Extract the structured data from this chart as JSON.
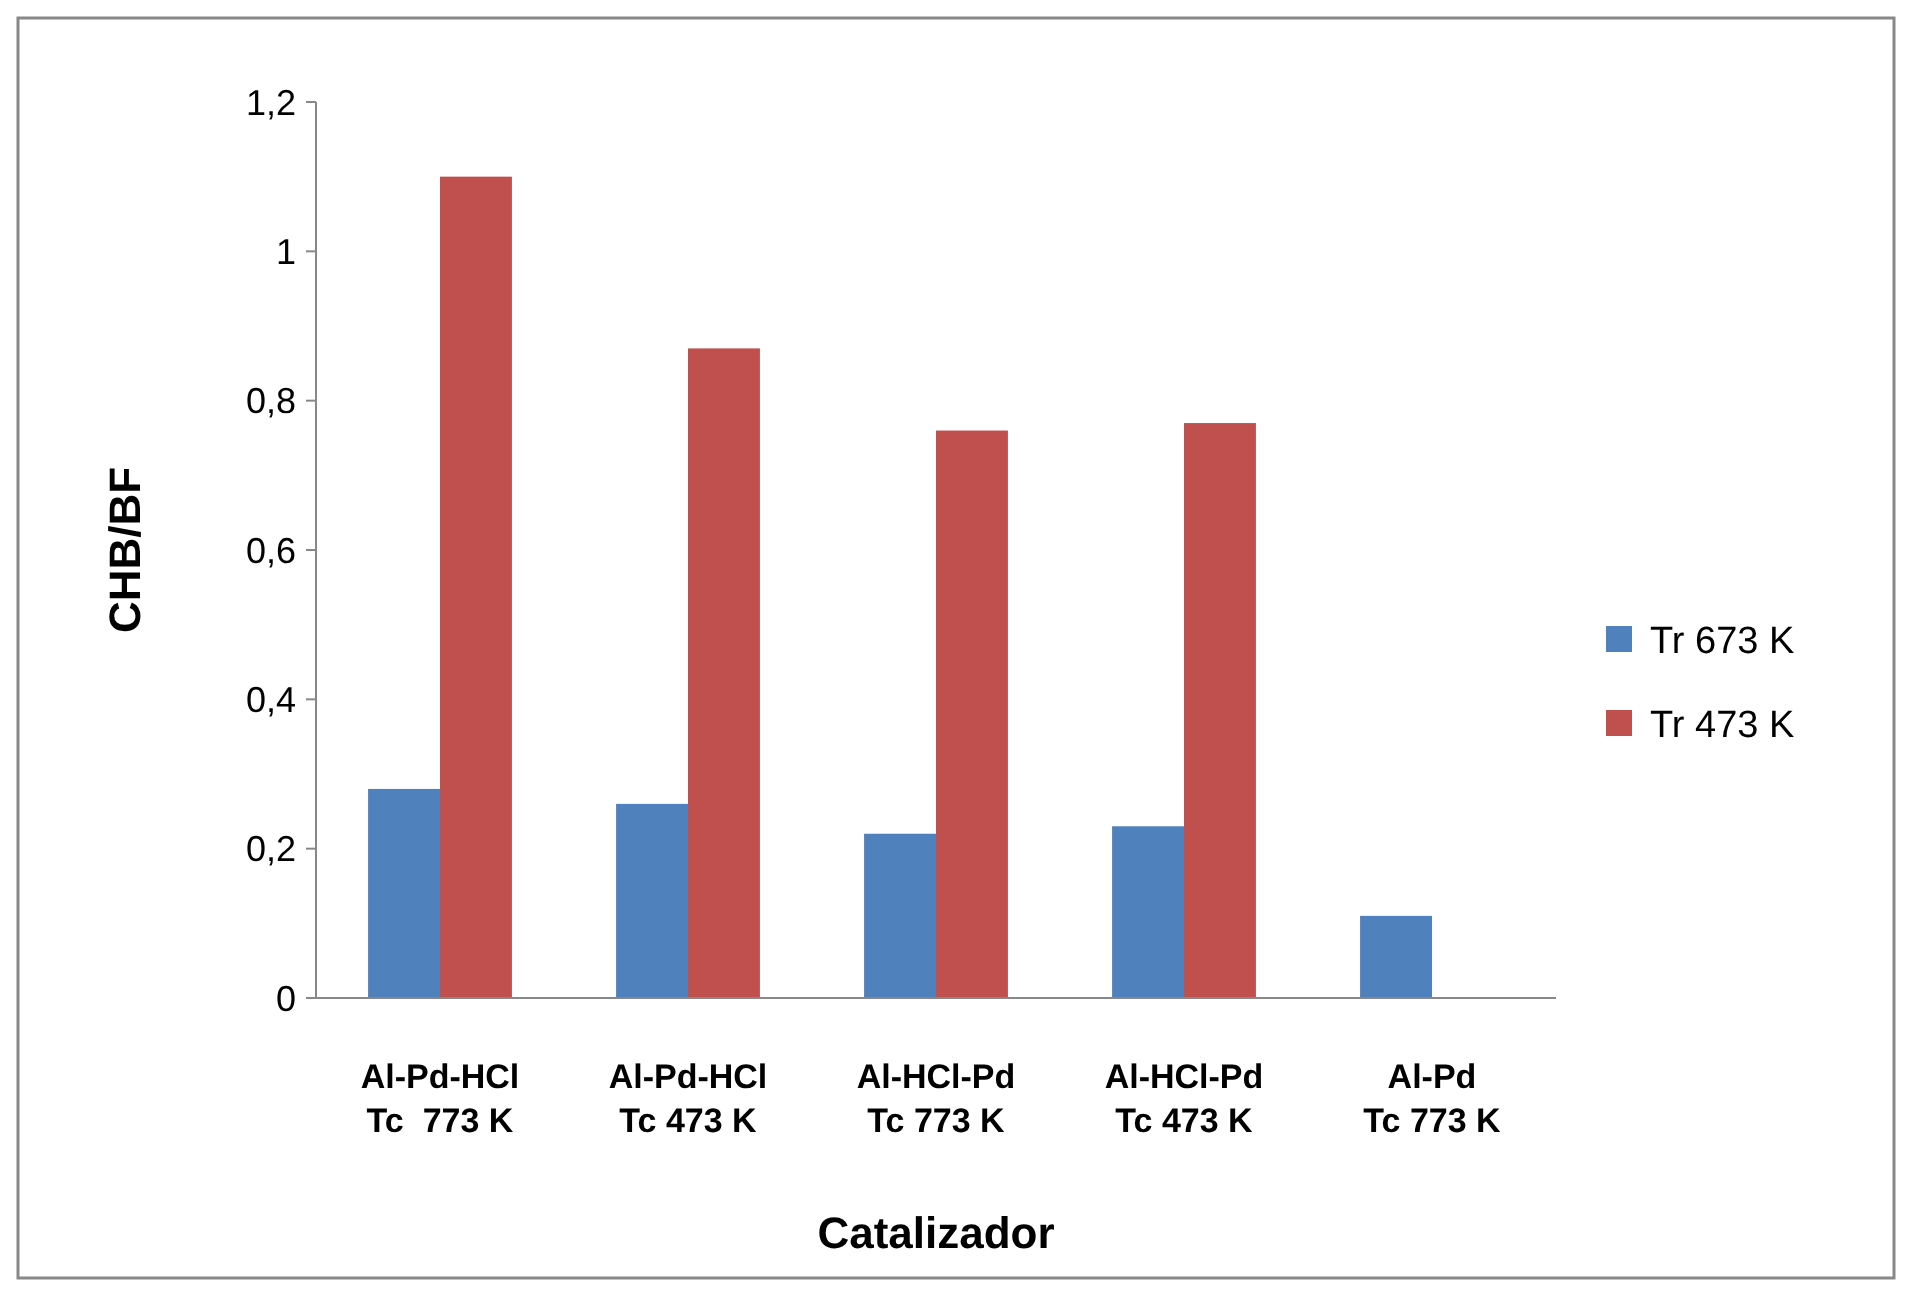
{
  "chart_data": {
    "type": "bar",
    "xlabel": "Catalizador",
    "ylabel": "CHB/BF",
    "categories": [
      "Al-Pd-HCl\nTc  773 K",
      "Al-Pd-HCl\nTc 473 K",
      "Al-HCl-Pd\nTc 773 K",
      "Al-HCl-Pd\nTc 473 K",
      "Al-Pd\nTc 773 K"
    ],
    "series": [
      {
        "name": "Tr 673 K",
        "color": "#4f81bd",
        "values": [
          0.28,
          0.26,
          0.22,
          0.23,
          0.11
        ]
      },
      {
        "name": "Tr 473 K",
        "color": "#c0504d",
        "values": [
          1.1,
          0.87,
          0.76,
          0.77,
          null
        ]
      }
    ],
    "ylim": [
      0,
      1.2
    ],
    "yticks": [
      0,
      {
        "value": 0.2,
        "label": "0,2"
      },
      {
        "value": 0.4,
        "label": "0,4"
      },
      {
        "value": 0.6,
        "label": "0,6"
      },
      {
        "value": 0.8,
        "label": "0,8"
      },
      1,
      {
        "value": 1.2,
        "label": "1,2"
      }
    ],
    "grid": false,
    "legend": "right"
  }
}
